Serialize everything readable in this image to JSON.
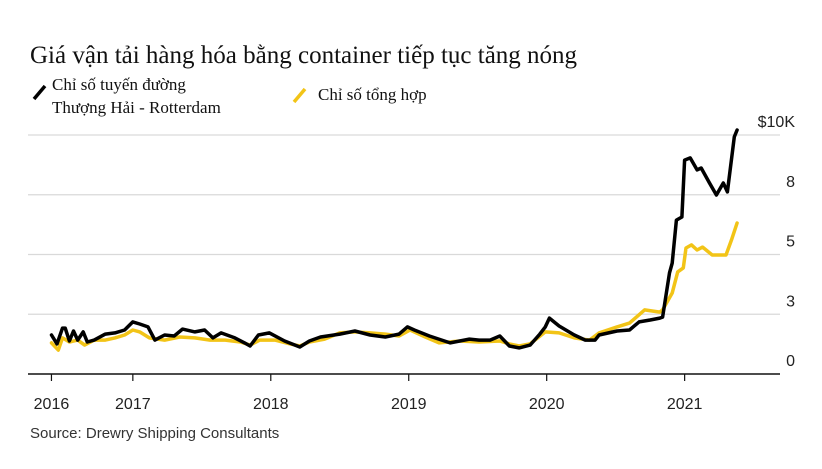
{
  "chart_data": {
    "type": "line",
    "title": "Giá vận tải hàng hóa bằng container tiếp tục tăng nóng",
    "source": "Source: Drewry Shipping Consultants",
    "xlabel": "",
    "ylabel": "",
    "xlim": [
      2016.24,
      2021.8
    ],
    "ylim": [
      0,
      10
    ],
    "grid": true,
    "legend_position": "top-left",
    "x_ticks": [
      {
        "value": 2016.41,
        "label": "2016"
      },
      {
        "value": 2017,
        "label": "2017"
      },
      {
        "value": 2018,
        "label": "2018"
      },
      {
        "value": 2019,
        "label": "2019"
      },
      {
        "value": 2020,
        "label": "2020"
      },
      {
        "value": 2021,
        "label": "2021"
      }
    ],
    "y_ticks": [
      {
        "value": 10,
        "label": "$10K"
      },
      {
        "value": 7.5,
        "label": "8"
      },
      {
        "value": 5,
        "label": "5"
      },
      {
        "value": 2.5,
        "label": "3"
      },
      {
        "value": 0,
        "label": "0"
      }
    ],
    "series": [
      {
        "name": "Chỉ số tuyến đường Thượng Hải - Rotterdam",
        "name_lines": [
          "Chỉ số tuyến đường",
          "Thượng Hải - Rotterdam"
        ],
        "color": "#000000",
        "x": [
          2016.41,
          2016.45,
          2016.49,
          2016.51,
          2016.54,
          2016.57,
          2016.6,
          2016.64,
          2016.67,
          2016.72,
          2016.8,
          2016.87,
          2016.94,
          2017.0,
          2017.05,
          2017.11,
          2017.16,
          2017.23,
          2017.3,
          2017.36,
          2017.45,
          2017.52,
          2017.58,
          2017.64,
          2017.74,
          2017.81,
          2017.85,
          2017.91,
          2017.99,
          2018.1,
          2018.21,
          2018.28,
          2018.36,
          2018.5,
          2018.61,
          2018.72,
          2018.83,
          2018.93,
          2018.99,
          2019.04,
          2019.15,
          2019.3,
          2019.44,
          2019.51,
          2019.59,
          2019.66,
          2019.73,
          2019.8,
          2019.88,
          2019.95,
          2019.99,
          2020.02,
          2020.09,
          2020.2,
          2020.28,
          2020.35,
          2020.38,
          2020.51,
          2020.6,
          2020.67,
          2020.75,
          2020.82,
          2020.84,
          2020.89,
          2020.91,
          2020.94,
          2020.98,
          2021.0,
          2021.04,
          2021.09,
          2021.12,
          2021.18,
          2021.23,
          2021.28,
          2021.31,
          2021.36,
          2021.38
        ],
        "values": [
          1.63,
          1.26,
          1.92,
          1.92,
          1.38,
          1.8,
          1.42,
          1.76,
          1.34,
          1.42,
          1.67,
          1.72,
          1.84,
          2.18,
          2.09,
          1.97,
          1.42,
          1.63,
          1.59,
          1.88,
          1.76,
          1.84,
          1.51,
          1.72,
          1.51,
          1.3,
          1.17,
          1.63,
          1.72,
          1.38,
          1.13,
          1.38,
          1.55,
          1.67,
          1.8,
          1.63,
          1.55,
          1.67,
          1.97,
          1.84,
          1.59,
          1.3,
          1.46,
          1.42,
          1.42,
          1.59,
          1.17,
          1.09,
          1.21,
          1.67,
          1.97,
          2.34,
          2.01,
          1.63,
          1.42,
          1.42,
          1.63,
          1.8,
          1.84,
          2.18,
          2.26,
          2.34,
          2.38,
          4.23,
          4.64,
          6.44,
          6.57,
          8.95,
          9.04,
          8.54,
          8.62,
          7.99,
          7.49,
          7.99,
          7.62,
          9.92,
          10.21
        ]
      },
      {
        "name": "Chỉ số tổng hợp",
        "name_lines": [
          "Chỉ số tổng hợp"
        ],
        "color": "#f2c417",
        "x": [
          2016.41,
          2016.46,
          2016.49,
          2016.54,
          2016.6,
          2016.65,
          2016.72,
          2016.8,
          2016.87,
          2016.94,
          2017.0,
          2017.05,
          2017.12,
          2017.23,
          2017.34,
          2017.45,
          2017.56,
          2017.67,
          2017.78,
          2017.85,
          2017.92,
          2018.03,
          2018.14,
          2018.21,
          2018.28,
          2018.39,
          2018.5,
          2018.61,
          2018.72,
          2018.83,
          2018.93,
          2019.01,
          2019.12,
          2019.22,
          2019.37,
          2019.51,
          2019.66,
          2019.73,
          2019.8,
          2019.88,
          2019.99,
          2020.09,
          2020.2,
          2020.31,
          2020.38,
          2020.51,
          2020.6,
          2020.71,
          2020.82,
          2020.84,
          2020.91,
          2020.95,
          2020.99,
          2021.01,
          2021.05,
          2021.09,
          2021.13,
          2021.2,
          2021.3,
          2021.34,
          2021.38
        ],
        "values": [
          1.3,
          1.0,
          1.51,
          1.34,
          1.42,
          1.21,
          1.42,
          1.42,
          1.51,
          1.63,
          1.84,
          1.76,
          1.51,
          1.42,
          1.55,
          1.51,
          1.42,
          1.42,
          1.34,
          1.21,
          1.42,
          1.42,
          1.26,
          1.17,
          1.34,
          1.46,
          1.72,
          1.76,
          1.72,
          1.67,
          1.59,
          1.84,
          1.55,
          1.3,
          1.38,
          1.34,
          1.38,
          1.26,
          1.17,
          1.26,
          1.76,
          1.72,
          1.51,
          1.42,
          1.72,
          1.97,
          2.13,
          2.68,
          2.59,
          2.68,
          3.39,
          4.27,
          4.44,
          5.27,
          5.4,
          5.19,
          5.31,
          4.98,
          4.98,
          5.61,
          6.32
        ]
      }
    ]
  }
}
